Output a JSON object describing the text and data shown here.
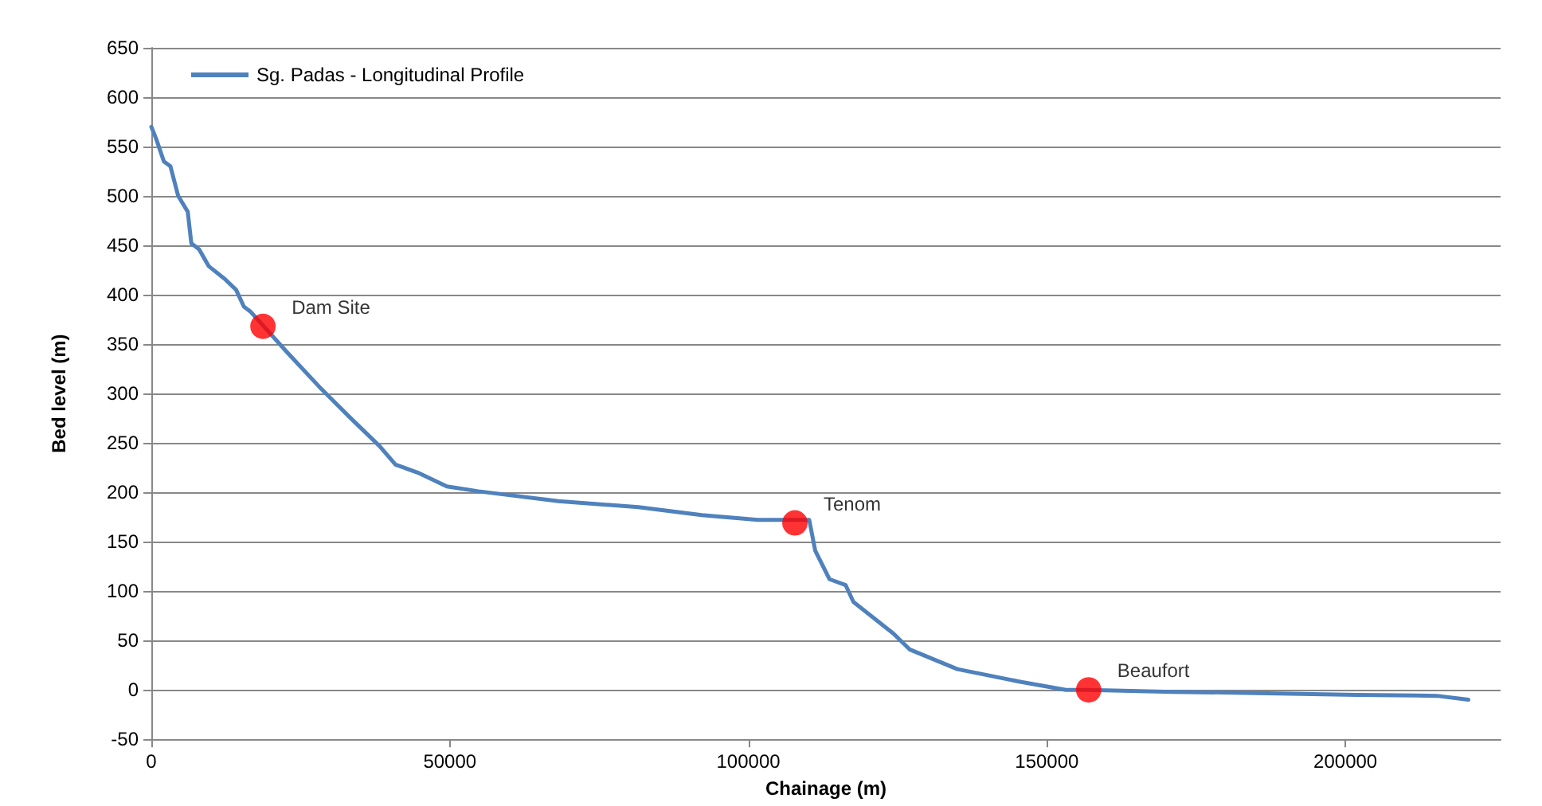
{
  "chart_data": {
    "type": "line",
    "xlabel": "Chainage (m)",
    "ylabel": "Bed level (m)",
    "xlim": [
      0,
      226000
    ],
    "xticks": [
      0,
      50000,
      100000,
      150000,
      200000
    ],
    "ylim": [
      -50,
      650
    ],
    "yticks": [
      -50,
      0,
      50,
      100,
      150,
      200,
      250,
      300,
      350,
      400,
      450,
      500,
      550,
      600,
      650
    ],
    "grid": "y",
    "legend": "top left",
    "marker": "none",
    "line_style": "solid",
    "series": [
      {
        "name": "Sg. Padas - Longitudinal Profile",
        "color": "#4f81bd",
        "x": [
          0,
          800,
          2100,
          3200,
          4500,
          6100,
          6700,
          8000,
          9600,
          12300,
          14200,
          15500,
          16600,
          22700,
          28100,
          33400,
          38200,
          40900,
          44600,
          49500,
          54800,
          68200,
          81600,
          92200,
          101600,
          110200,
          111200,
          113600,
          116300,
          117600,
          124300,
          127000,
          135000,
          145700,
          153200,
          157000,
          171100,
          183200,
          201900,
          215300,
          220600
        ],
        "values": [
          570,
          558,
          535,
          530,
          500,
          484,
          452,
          446,
          429,
          416,
          405,
          388,
          383,
          342,
          307,
          275,
          247,
          228,
          220,
          206,
          201,
          191,
          185,
          177,
          172,
          172,
          141,
          112,
          106,
          89,
          57,
          41,
          21,
          8,
          0,
          0,
          -2,
          -3,
          -5,
          -6,
          -10
        ]
      },
      {
        "type": "scatter",
        "marker": "circle",
        "color": "#ff0000",
        "x": [
          18700,
          107800,
          157000
        ],
        "values": [
          368,
          169,
          0
        ]
      }
    ],
    "annotations": [
      {
        "text": "Dam Site",
        "x": 18700,
        "y": 368
      },
      {
        "text": "Tenom",
        "x": 107800,
        "y": 169
      },
      {
        "text": "Beaufort",
        "x": 157000,
        "y": 0
      }
    ]
  }
}
